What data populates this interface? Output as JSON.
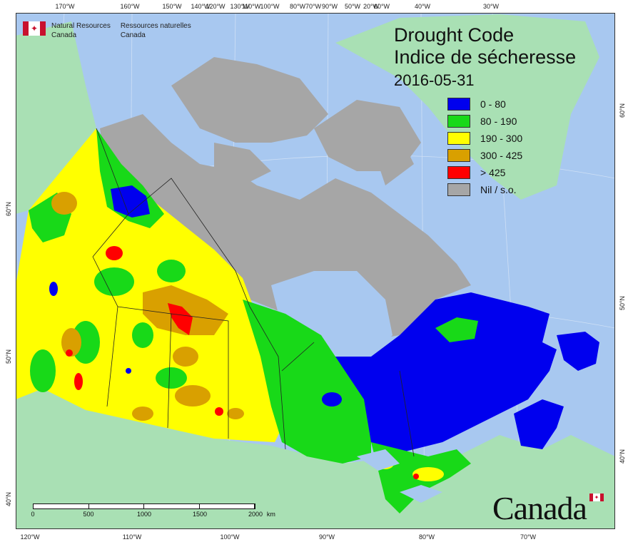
{
  "agency": {
    "name_en_line1": "Natural Resources",
    "name_en_line2": "Canada",
    "name_fr_line1": "Ressources naturelles",
    "name_fr_line2": "Canada"
  },
  "title": {
    "line1": "Drought Code",
    "line2": "Indice de sécheresse",
    "date": "2016-05-31"
  },
  "legend": [
    {
      "label": "0 - 80",
      "color": "#0000ee"
    },
    {
      "label": "80 - 190",
      "color": "#18d918"
    },
    {
      "label": "190 - 300",
      "color": "#ffff00"
    },
    {
      "label": "300 - 425",
      "color": "#d9a000"
    },
    {
      "label": "> 425",
      "color": "#ff0000"
    },
    {
      "label": "Nil / s.o.",
      "color": "#a6a6a6"
    }
  ],
  "top_ticks": [
    "170°W",
    "160°W",
    "150°W",
    "140°W",
    "130°W",
    "120°W",
    "100°W",
    "110°W",
    "80°W",
    "90°W",
    "60°W",
    "50°W",
    "70°W",
    "40°W",
    "30°W",
    "20°W"
  ],
  "bottom_ticks": [
    "120°W",
    "110°W",
    "100°W",
    "90°W",
    "80°W",
    "70°W"
  ],
  "left_ticks": [
    "60°N",
    "50°N",
    "40°N"
  ],
  "right_ticks": [
    "60°N",
    "50°N",
    "40°N"
  ],
  "scale_bar": {
    "labels": [
      "0",
      "500",
      "1000",
      "1500",
      "2000"
    ],
    "unit": "km"
  },
  "wordmark": "Canada",
  "colors": {
    "ocean": "#a8c8f0",
    "land_outside": "#a9e0b4",
    "canada_nil": "#a6a6a6"
  }
}
